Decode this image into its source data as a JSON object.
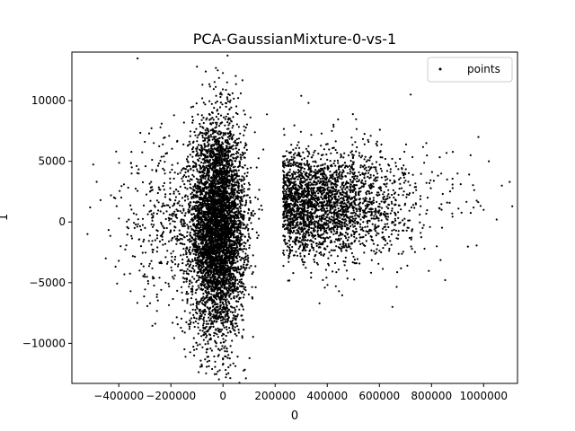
{
  "chart_data": {
    "type": "scatter",
    "title": "PCA-GaussianMixture-0-vs-1",
    "xlabel": "0",
    "ylabel": "1",
    "xlim": [
      -580000,
      1130000
    ],
    "ylim": [
      -13300,
      14000
    ],
    "xticks": [
      -400000,
      -200000,
      0,
      200000,
      400000,
      600000,
      800000,
      1000000
    ],
    "xtick_labels": [
      "−400000",
      "−200000",
      "0",
      "200000",
      "400000",
      "600000",
      "800000",
      "1000000"
    ],
    "yticks": [
      -10000,
      -5000,
      0,
      5000,
      10000
    ],
    "ytick_labels": [
      "−10000",
      "−5000",
      "0",
      "5000",
      "10000"
    ],
    "grid": false,
    "legend": {
      "position": "top-right",
      "entries": [
        "points"
      ]
    },
    "series": [
      {
        "name": "points",
        "color": "#000000",
        "marker": "dot",
        "clusters": [
          {
            "description": "dense vertical core",
            "center": [
              -10000,
              0
            ],
            "x_spread": [
              -200000,
              150000
            ],
            "y_spread": [
              -12000,
              12500
            ]
          },
          {
            "description": "horizontal plume",
            "center": [
              450000,
              1500
            ],
            "x_spread": [
              200000,
              850000
            ],
            "y_spread": [
              -7000,
              9000
            ]
          }
        ],
        "points": [
          [
            -520000,
            -1000
          ],
          [
            -510000,
            1200
          ],
          [
            -470000,
            1800
          ],
          [
            -450000,
            -3000
          ],
          [
            -430000,
            2200
          ],
          [
            -410000,
            5800
          ],
          [
            -400000,
            -3200
          ],
          [
            -380000,
            3100
          ],
          [
            -350000,
            4500
          ],
          [
            -320000,
            -4000
          ],
          [
            -300000,
            6600
          ],
          [
            -280000,
            2500
          ],
          [
            -260000,
            -1500
          ],
          [
            -240000,
            7800
          ],
          [
            -220000,
            -5000
          ],
          [
            650000,
            -7000
          ],
          [
            720000,
            10500
          ],
          [
            780000,
            6500
          ],
          [
            820000,
            -2000
          ],
          [
            860000,
            3500
          ],
          [
            900000,
            4000
          ],
          [
            950000,
            5500
          ],
          [
            980000,
            7000
          ],
          [
            1000000,
            1000
          ],
          [
            1020000,
            5000
          ],
          [
            1050000,
            200
          ],
          [
            1070000,
            3000
          ],
          [
            1100000,
            3300
          ],
          [
            1110000,
            1300
          ],
          [
            -100000,
            12800
          ],
          [
            -20000,
            12500
          ],
          [
            10000,
            -12200
          ],
          [
            -60000,
            -11500
          ],
          [
            370000,
            -6700
          ],
          [
            300000,
            10400
          ]
        ]
      }
    ]
  }
}
